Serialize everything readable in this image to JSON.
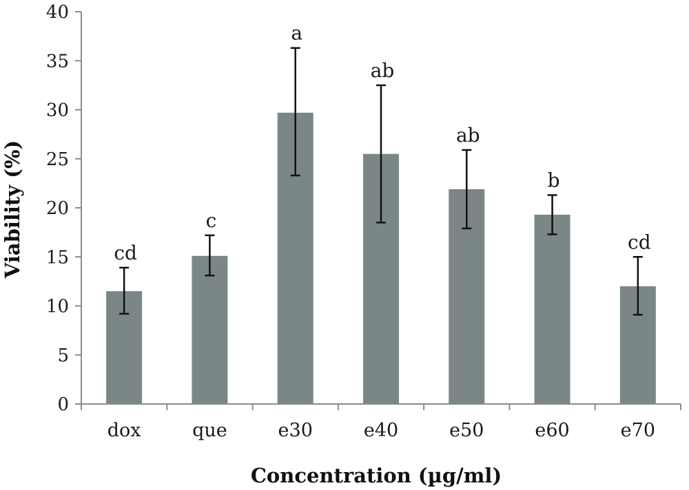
{
  "chart_data": {
    "type": "bar",
    "title": "",
    "xlabel": "Concentration (µg/ml)",
    "ylabel": "Viability (%)",
    "ylim": [
      0,
      40
    ],
    "yticks": [
      "0",
      "5",
      "10",
      "15",
      "20",
      "25",
      "30",
      "35",
      "40"
    ],
    "grid": false,
    "legend": "none",
    "categories": [
      "dox",
      "que",
      "e30",
      "e40",
      "e50",
      "e60",
      "e70"
    ],
    "values": [
      11.5,
      15.1,
      29.7,
      25.5,
      21.9,
      19.3,
      12.0
    ],
    "error_low": [
      9.2,
      13.1,
      23.3,
      18.5,
      17.9,
      17.3,
      9.1
    ],
    "error_high": [
      13.9,
      17.2,
      36.3,
      32.5,
      25.9,
      21.3,
      15.0
    ],
    "significance_labels": [
      "cd",
      "c",
      "a",
      "ab",
      "ab",
      "b",
      "cd"
    ],
    "colors": {
      "bar": "#7b8786",
      "axis": "#8a8a8a",
      "error": "#111111",
      "text": "#1a1a1a"
    }
  }
}
